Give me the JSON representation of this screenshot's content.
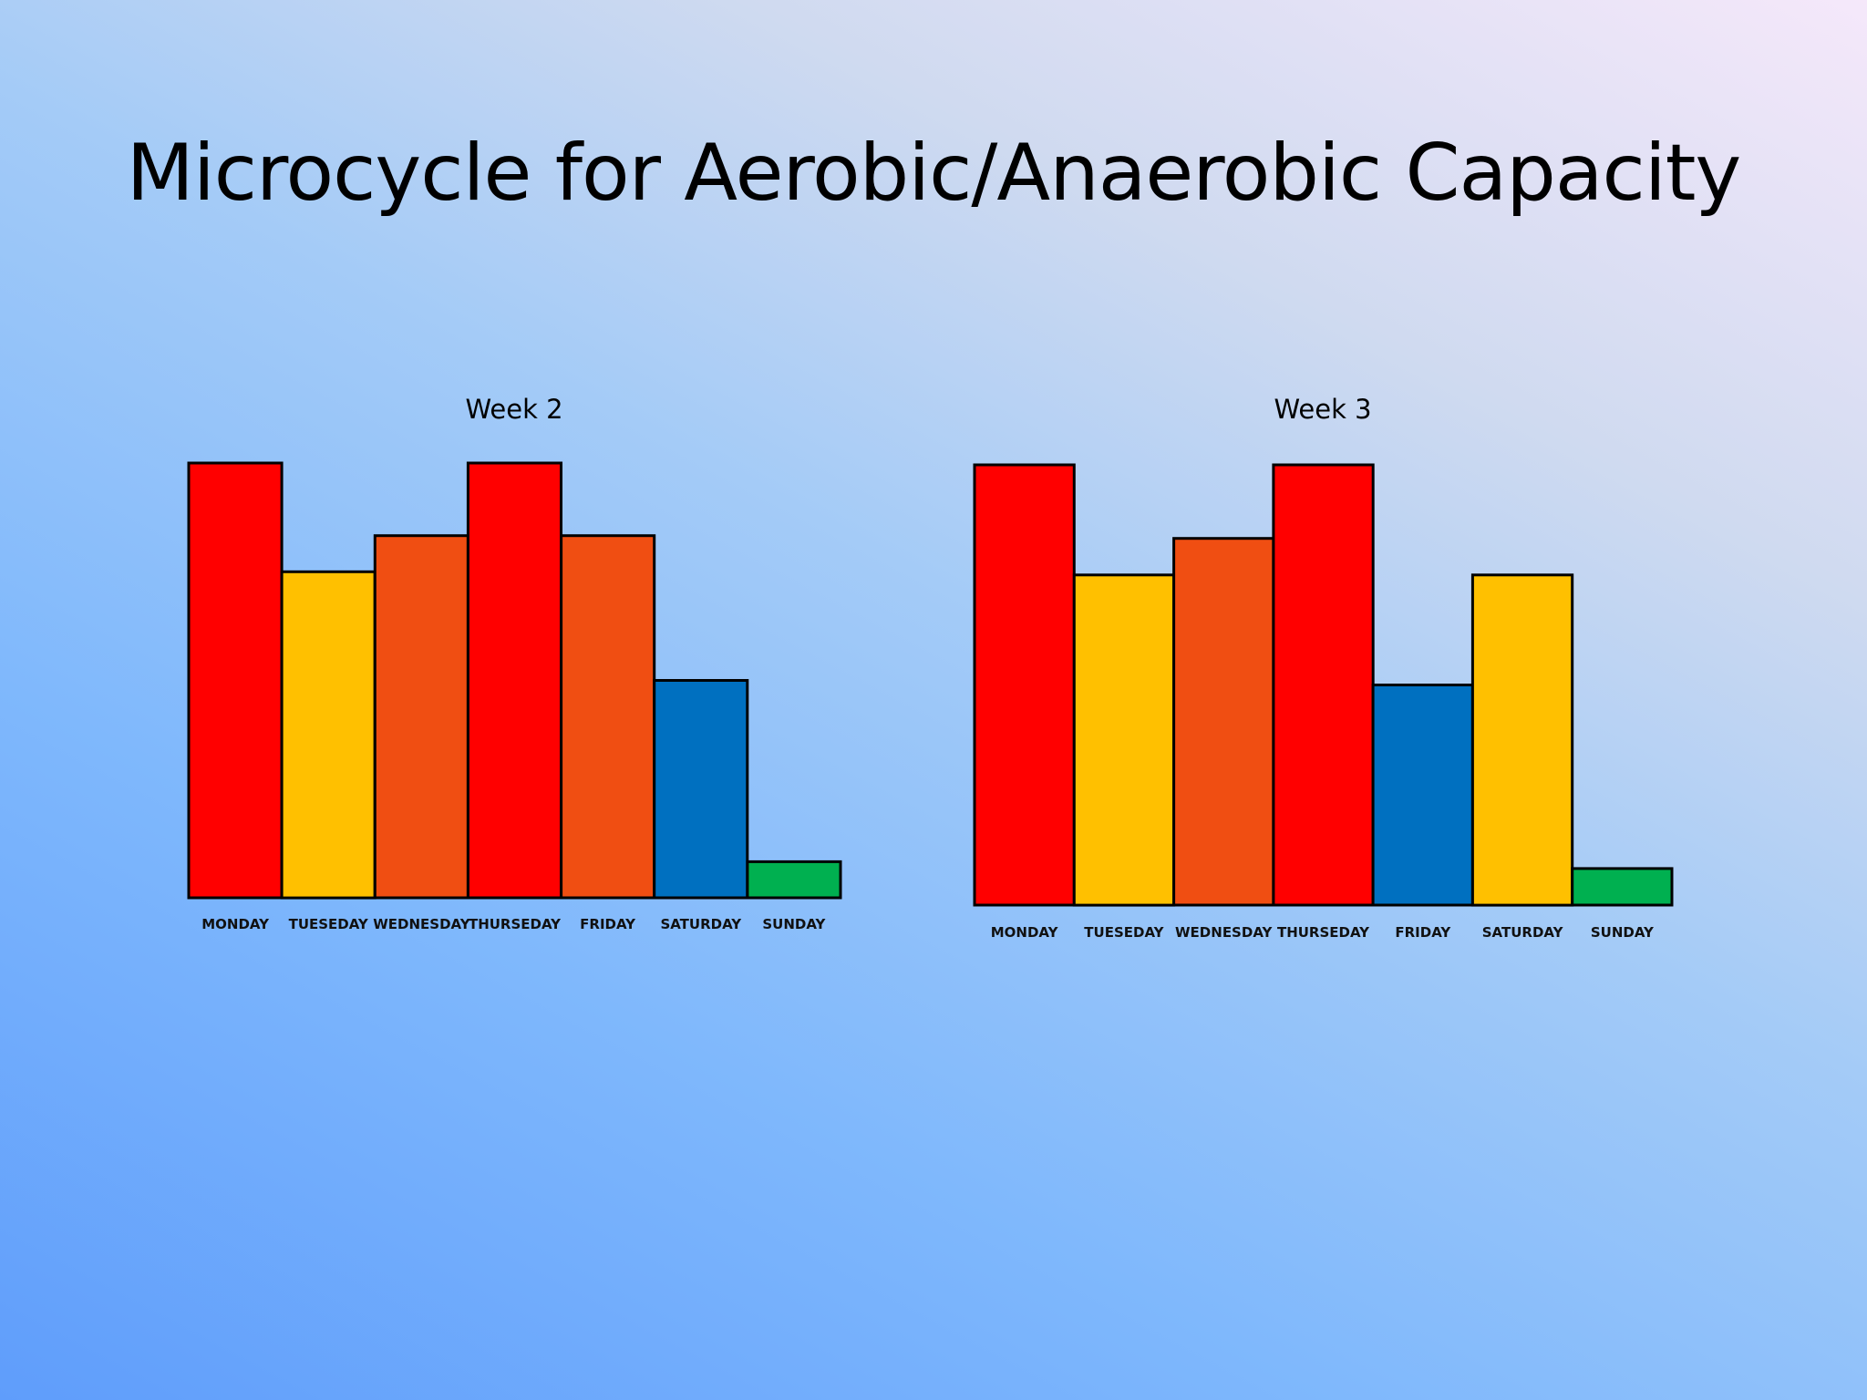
{
  "slide": {
    "title": "Microcycle for Aerobic/Anaerobic Capacity"
  },
  "chart_data": [
    {
      "type": "bar",
      "title": "Week 2",
      "categories": [
        "MONDAY",
        "TUESEDAY",
        "WEDNESDAY",
        "THURSEDAY",
        "FRIDAY",
        "SATURDAY",
        "SUNDAY"
      ],
      "values": [
        100,
        75,
        83.3,
        100,
        83.3,
        50,
        8.3
      ],
      "colors": [
        "#ff0000",
        "#ffc000",
        "#f04e12",
        "#ff0000",
        "#f04e12",
        "#0070c0",
        "#00b050"
      ],
      "ylim": [
        0,
        100
      ],
      "grid": false,
      "legend": false
    },
    {
      "type": "bar",
      "title": "Week 3",
      "categories": [
        "MONDAY",
        "TUESEDAY",
        "WEDNESDAY",
        "THURSEDAY",
        "FRIDAY",
        "SATURDAY",
        "SUNDAY"
      ],
      "values": [
        100,
        75,
        83.3,
        100,
        50,
        75,
        8.3
      ],
      "colors": [
        "#ff0000",
        "#ffc000",
        "#f04e12",
        "#ff0000",
        "#0070c0",
        "#ffc000",
        "#00b050"
      ],
      "ylim": [
        0,
        100
      ],
      "grid": false,
      "legend": false
    }
  ]
}
